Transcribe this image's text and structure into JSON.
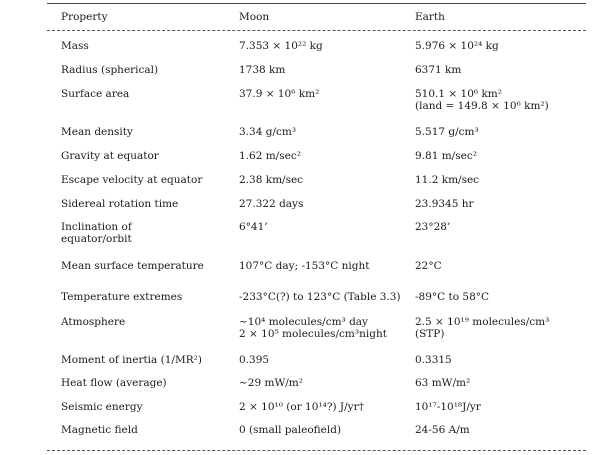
{
  "headers": {
    "property": "Property",
    "moon": "Moon",
    "earth": "Earth"
  },
  "rows": [
    {
      "p": [
        "Mass"
      ],
      "m": [
        "7.353 × 10²² kg"
      ],
      "e": [
        "5.976 × 10²⁴ kg"
      ]
    },
    {
      "p": [
        "Radius (spherical)"
      ],
      "m": [
        "1738 km"
      ],
      "e": [
        "6371 km"
      ]
    },
    {
      "p": [
        "Surface area"
      ],
      "m": [
        "37.9 × 10⁶ km²"
      ],
      "e": [
        "510.1 × 10⁶ km²",
        "(land = 149.8 × 10⁶ km²)"
      ]
    },
    {
      "p": [
        "Mean density"
      ],
      "m": [
        "3.34 g/cm³"
      ],
      "e": [
        "5.517 g/cm³"
      ]
    },
    {
      "p": [
        "Gravity at equator"
      ],
      "m": [
        "1.62 m/sec²"
      ],
      "e": [
        "9.81 m/sec²"
      ]
    },
    {
      "p": [
        "Escape velocity at equator"
      ],
      "m": [
        "2.38 km/sec"
      ],
      "e": [
        "11.2 km/sec"
      ]
    },
    {
      "p": [
        "Sidereal rotation time"
      ],
      "m": [
        "27.322 days"
      ],
      "e": [
        "23.9345 hr"
      ]
    },
    {
      "p": [
        "Inclination of",
        "equator/orbit"
      ],
      "m": [
        "6°41’"
      ],
      "e": [
        "23°28’"
      ]
    },
    {
      "p": [
        "Mean surface temperature"
      ],
      "m": [
        "107°C day; -153°C night"
      ],
      "e": [
        "22°C"
      ]
    },
    {
      "p": [
        "Temperature extremes"
      ],
      "m": [
        "-233°C(?) to 123°C (Table 3.3)"
      ],
      "e": [
        "-89°C to 58°C"
      ]
    },
    {
      "p": [
        "Atmosphere"
      ],
      "m": [
        "~10⁴ molecules/cm³ day",
        "2 × 10⁵ molecules/cm³night"
      ],
      "e": [
        "2.5 × 10¹⁹ molecules/cm³",
        "(STP)"
      ]
    },
    {
      "p": [
        "Moment of inertia (1/MR²)"
      ],
      "m": [
        "0.395"
      ],
      "e": [
        "0.3315"
      ]
    },
    {
      "p": [
        "Heat flow (average)"
      ],
      "m": [
        "~29 mW/m²"
      ],
      "e": [
        "63 mW/m²"
      ]
    },
    {
      "p": [
        "Seismic energy"
      ],
      "m": [
        "2 × 10¹⁰ (or 10¹⁴?) J/yr†"
      ],
      "e": [
        "10¹⁷-10¹⁸J/yr"
      ]
    },
    {
      "p": [
        "Magnetic field"
      ],
      "m": [
        "0 (small paleofield)"
      ],
      "e": [
        "24-56 A/m"
      ]
    }
  ]
}
